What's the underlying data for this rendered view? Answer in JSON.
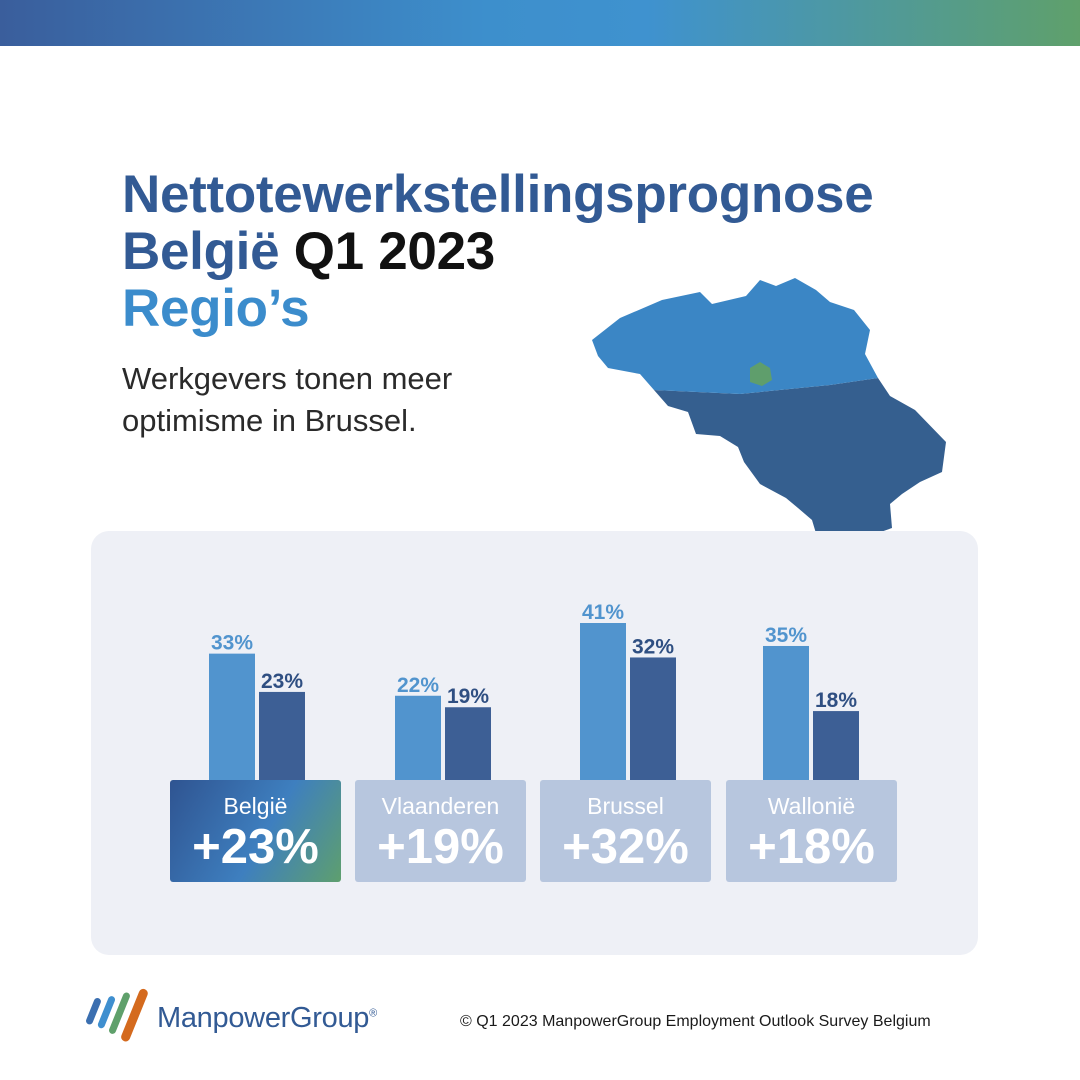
{
  "title": {
    "line1": "Nettotewerkstellingsprognose",
    "line2_country": "België",
    "line2_period": "Q1 2023",
    "line3": "Regio’s"
  },
  "subtitle": "Werkgevers tonen meer optimisme in Brussel.",
  "colors": {
    "bar_light": "#5194ce",
    "bar_dark": "#3d5f95",
    "label_light": "#5194ce",
    "label_dark": "#2f4f82",
    "card_inactive": "#b7c6de",
    "map_flanders": "#3b86c5",
    "map_wallonia": "#355f8f",
    "map_brussels": "#5f9e6c"
  },
  "chart_data": {
    "type": "bar",
    "categories": [
      "België",
      "Vlaanderen",
      "Brussel",
      "Wallonië"
    ],
    "series": [
      {
        "values": [
          33,
          22,
          41,
          35
        ],
        "labels": [
          "33%",
          "22%",
          "41%",
          "35%"
        ]
      },
      {
        "values": [
          23,
          19,
          32,
          18
        ],
        "labels": [
          "23%",
          "19%",
          "32%",
          "18%"
        ]
      }
    ],
    "ylim": [
      0,
      41
    ],
    "grid": false,
    "title": "",
    "xlabel": "",
    "ylabel": ""
  },
  "cards": [
    {
      "name": "België",
      "value": "+23%",
      "active": true
    },
    {
      "name": "Vlaanderen",
      "value": "+19%",
      "active": false
    },
    {
      "name": "Brussel",
      "value": "+32%",
      "active": false
    },
    {
      "name": "Wallonië",
      "value": "+18%",
      "active": false
    }
  ],
  "footer": {
    "logo_text": "ManpowerGroup",
    "logo_mark": "®",
    "copyright": "© Q1 2023 ManpowerGroup Employment Outlook Survey Belgium"
  }
}
